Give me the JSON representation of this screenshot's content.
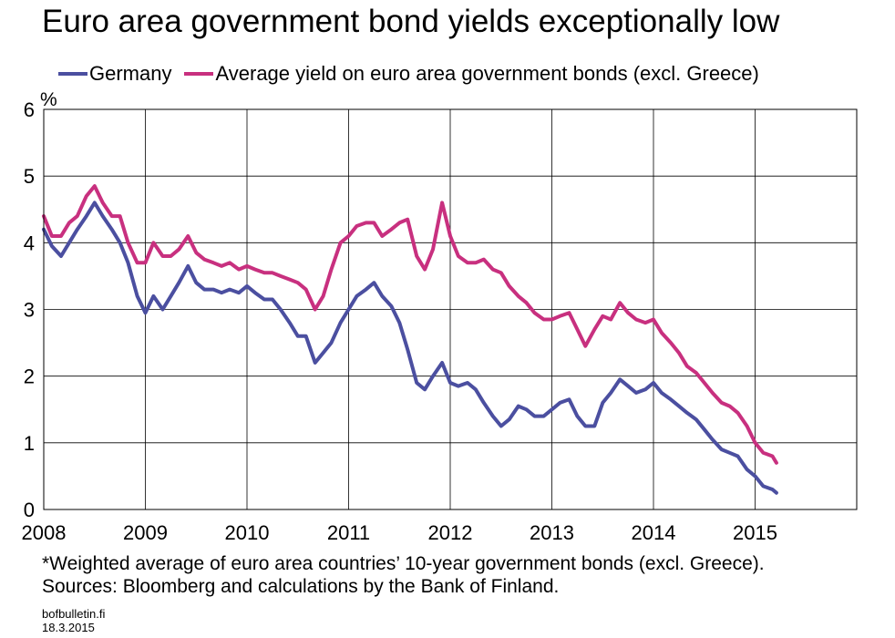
{
  "chart_data": {
    "type": "line",
    "title": "Euro area government bond yields exceptionally low",
    "ylabel": "%",
    "xlabel": "",
    "xlim": [
      2008.0,
      2016.0
    ],
    "ylim": [
      0,
      6
    ],
    "yticks": [
      0,
      1,
      2,
      3,
      4,
      5,
      6
    ],
    "xticks": [
      {
        "value": 2008,
        "label": "2008"
      },
      {
        "value": 2009,
        "label": "2009"
      },
      {
        "value": 2010,
        "label": "2010"
      },
      {
        "value": 2011,
        "label": "2011"
      },
      {
        "value": 2012,
        "label": "2012"
      },
      {
        "value": 2013,
        "label": "2013"
      },
      {
        "value": 2014,
        "label": "2014"
      },
      {
        "value": 2015,
        "label": "2015"
      }
    ],
    "grid": true,
    "legend_position": "top",
    "series": [
      {
        "name": "Germany",
        "color": "#4b4fa0",
        "points": [
          [
            2008.0,
            4.2
          ],
          [
            2008.08,
            3.95
          ],
          [
            2008.17,
            3.8
          ],
          [
            2008.25,
            4.0
          ],
          [
            2008.33,
            4.2
          ],
          [
            2008.42,
            4.4
          ],
          [
            2008.5,
            4.6
          ],
          [
            2008.58,
            4.4
          ],
          [
            2008.67,
            4.2
          ],
          [
            2008.75,
            4.0
          ],
          [
            2008.83,
            3.7
          ],
          [
            2008.92,
            3.2
          ],
          [
            2009.0,
            2.95
          ],
          [
            2009.08,
            3.2
          ],
          [
            2009.17,
            3.0
          ],
          [
            2009.25,
            3.2
          ],
          [
            2009.33,
            3.4
          ],
          [
            2009.42,
            3.65
          ],
          [
            2009.5,
            3.4
          ],
          [
            2009.58,
            3.3
          ],
          [
            2009.67,
            3.3
          ],
          [
            2009.75,
            3.25
          ],
          [
            2009.83,
            3.3
          ],
          [
            2009.92,
            3.25
          ],
          [
            2010.0,
            3.35
          ],
          [
            2010.08,
            3.25
          ],
          [
            2010.17,
            3.15
          ],
          [
            2010.25,
            3.15
          ],
          [
            2010.33,
            3.0
          ],
          [
            2010.42,
            2.8
          ],
          [
            2010.5,
            2.6
          ],
          [
            2010.58,
            2.6
          ],
          [
            2010.67,
            2.2
          ],
          [
            2010.75,
            2.35
          ],
          [
            2010.83,
            2.5
          ],
          [
            2010.92,
            2.8
          ],
          [
            2011.0,
            3.0
          ],
          [
            2011.08,
            3.2
          ],
          [
            2011.17,
            3.3
          ],
          [
            2011.25,
            3.4
          ],
          [
            2011.33,
            3.2
          ],
          [
            2011.42,
            3.05
          ],
          [
            2011.5,
            2.8
          ],
          [
            2011.58,
            2.4
          ],
          [
            2011.67,
            1.9
          ],
          [
            2011.75,
            1.8
          ],
          [
            2011.83,
            2.0
          ],
          [
            2011.92,
            2.2
          ],
          [
            2012.0,
            1.9
          ],
          [
            2012.08,
            1.85
          ],
          [
            2012.17,
            1.9
          ],
          [
            2012.25,
            1.8
          ],
          [
            2012.33,
            1.6
          ],
          [
            2012.42,
            1.4
          ],
          [
            2012.5,
            1.25
          ],
          [
            2012.58,
            1.35
          ],
          [
            2012.67,
            1.55
          ],
          [
            2012.75,
            1.5
          ],
          [
            2012.83,
            1.4
          ],
          [
            2012.92,
            1.4
          ],
          [
            2013.0,
            1.5
          ],
          [
            2013.08,
            1.6
          ],
          [
            2013.17,
            1.65
          ],
          [
            2013.25,
            1.4
          ],
          [
            2013.33,
            1.25
          ],
          [
            2013.42,
            1.25
          ],
          [
            2013.5,
            1.6
          ],
          [
            2013.58,
            1.75
          ],
          [
            2013.67,
            1.95
          ],
          [
            2013.75,
            1.85
          ],
          [
            2013.83,
            1.75
          ],
          [
            2013.92,
            1.8
          ],
          [
            2014.0,
            1.9
          ],
          [
            2014.08,
            1.75
          ],
          [
            2014.17,
            1.65
          ],
          [
            2014.25,
            1.55
          ],
          [
            2014.33,
            1.45
          ],
          [
            2014.42,
            1.35
          ],
          [
            2014.5,
            1.2
          ],
          [
            2014.58,
            1.05
          ],
          [
            2014.67,
            0.9
          ],
          [
            2014.75,
            0.85
          ],
          [
            2014.83,
            0.8
          ],
          [
            2014.92,
            0.6
          ],
          [
            2015.0,
            0.5
          ],
          [
            2015.08,
            0.35
          ],
          [
            2015.17,
            0.3
          ],
          [
            2015.21,
            0.25
          ]
        ]
      },
      {
        "name": "Average yield on euro area government bonds (excl. Greece)",
        "color": "#c8307f",
        "points": [
          [
            2008.0,
            4.4
          ],
          [
            2008.08,
            4.1
          ],
          [
            2008.17,
            4.1
          ],
          [
            2008.25,
            4.3
          ],
          [
            2008.33,
            4.4
          ],
          [
            2008.42,
            4.7
          ],
          [
            2008.5,
            4.85
          ],
          [
            2008.58,
            4.6
          ],
          [
            2008.67,
            4.4
          ],
          [
            2008.75,
            4.4
          ],
          [
            2008.83,
            4.0
          ],
          [
            2008.92,
            3.7
          ],
          [
            2009.0,
            3.7
          ],
          [
            2009.08,
            4.0
          ],
          [
            2009.17,
            3.8
          ],
          [
            2009.25,
            3.8
          ],
          [
            2009.33,
            3.9
          ],
          [
            2009.42,
            4.1
          ],
          [
            2009.5,
            3.85
          ],
          [
            2009.58,
            3.75
          ],
          [
            2009.67,
            3.7
          ],
          [
            2009.75,
            3.65
          ],
          [
            2009.83,
            3.7
          ],
          [
            2009.92,
            3.6
          ],
          [
            2010.0,
            3.65
          ],
          [
            2010.08,
            3.6
          ],
          [
            2010.17,
            3.55
          ],
          [
            2010.25,
            3.55
          ],
          [
            2010.33,
            3.5
          ],
          [
            2010.42,
            3.45
          ],
          [
            2010.5,
            3.4
          ],
          [
            2010.58,
            3.3
          ],
          [
            2010.67,
            3.0
          ],
          [
            2010.75,
            3.2
          ],
          [
            2010.83,
            3.6
          ],
          [
            2010.92,
            4.0
          ],
          [
            2011.0,
            4.1
          ],
          [
            2011.08,
            4.25
          ],
          [
            2011.17,
            4.3
          ],
          [
            2011.25,
            4.3
          ],
          [
            2011.33,
            4.1
          ],
          [
            2011.42,
            4.2
          ],
          [
            2011.5,
            4.3
          ],
          [
            2011.58,
            4.35
          ],
          [
            2011.67,
            3.8
          ],
          [
            2011.75,
            3.6
          ],
          [
            2011.83,
            3.9
          ],
          [
            2011.92,
            4.6
          ],
          [
            2012.0,
            4.1
          ],
          [
            2012.08,
            3.8
          ],
          [
            2012.17,
            3.7
          ],
          [
            2012.25,
            3.7
          ],
          [
            2012.33,
            3.75
          ],
          [
            2012.42,
            3.6
          ],
          [
            2012.5,
            3.55
          ],
          [
            2012.58,
            3.35
          ],
          [
            2012.67,
            3.2
          ],
          [
            2012.75,
            3.1
          ],
          [
            2012.83,
            2.95
          ],
          [
            2012.92,
            2.85
          ],
          [
            2013.0,
            2.85
          ],
          [
            2013.08,
            2.9
          ],
          [
            2013.17,
            2.95
          ],
          [
            2013.25,
            2.7
          ],
          [
            2013.33,
            2.45
          ],
          [
            2013.42,
            2.7
          ],
          [
            2013.5,
            2.9
          ],
          [
            2013.58,
            2.85
          ],
          [
            2013.67,
            3.1
          ],
          [
            2013.75,
            2.95
          ],
          [
            2013.83,
            2.85
          ],
          [
            2013.92,
            2.8
          ],
          [
            2014.0,
            2.85
          ],
          [
            2014.08,
            2.65
          ],
          [
            2014.17,
            2.5
          ],
          [
            2014.25,
            2.35
          ],
          [
            2014.33,
            2.15
          ],
          [
            2014.42,
            2.05
          ],
          [
            2014.5,
            1.9
          ],
          [
            2014.58,
            1.75
          ],
          [
            2014.67,
            1.6
          ],
          [
            2014.75,
            1.55
          ],
          [
            2014.83,
            1.45
          ],
          [
            2014.92,
            1.25
          ],
          [
            2015.0,
            1.0
          ],
          [
            2015.08,
            0.85
          ],
          [
            2015.17,
            0.8
          ],
          [
            2015.21,
            0.7
          ]
        ]
      }
    ]
  },
  "notes": {
    "line1": "*Weighted average of euro area countries’ 10-year government bonds (excl. Greece).",
    "line2": "Sources: Bloomberg and calculations by the Bank of Finland."
  },
  "footer": {
    "site": "bofbulletin.fi",
    "date": "18.3.2015"
  }
}
